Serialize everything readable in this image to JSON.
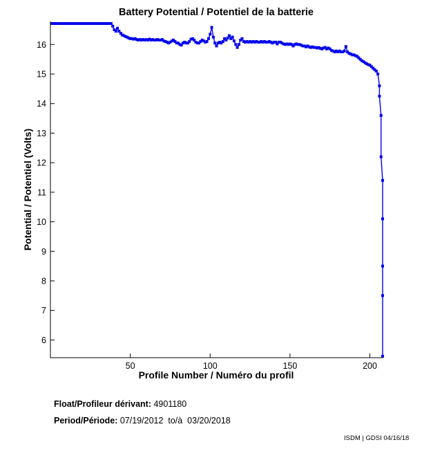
{
  "header": {
    "title": "Battery Potential / Potentiel de la batterie"
  },
  "chart_data": {
    "type": "line",
    "title": "Battery Potential / Potentiel de la batterie",
    "xlabel": "Profile Number / Numéro du profil",
    "ylabel": "Potential / Potentiel (Volts)",
    "xlim": [
      0,
      208
    ],
    "ylim": [
      5.4,
      16.78
    ],
    "xticks": [
      50,
      100,
      150,
      200
    ],
    "yticks": [
      6,
      7,
      8,
      9,
      10,
      11,
      12,
      13,
      14,
      15,
      16
    ],
    "grid": false,
    "legend": null,
    "line_color": "#0000EE",
    "marker": "square",
    "series": [
      {
        "name": "battery-potential-volts",
        "points": [
          [
            1,
            16.71
          ],
          [
            2,
            16.71
          ],
          [
            3,
            16.71
          ],
          [
            4,
            16.71
          ],
          [
            5,
            16.71
          ],
          [
            6,
            16.71
          ],
          [
            7,
            16.71
          ],
          [
            8,
            16.71
          ],
          [
            9,
            16.71
          ],
          [
            10,
            16.71
          ],
          [
            11,
            16.71
          ],
          [
            12,
            16.71
          ],
          [
            13,
            16.71
          ],
          [
            14,
            16.71
          ],
          [
            15,
            16.71
          ],
          [
            16,
            16.71
          ],
          [
            17,
            16.71
          ],
          [
            18,
            16.71
          ],
          [
            19,
            16.71
          ],
          [
            20,
            16.71
          ],
          [
            21,
            16.71
          ],
          [
            22,
            16.71
          ],
          [
            23,
            16.71
          ],
          [
            24,
            16.71
          ],
          [
            25,
            16.71
          ],
          [
            26,
            16.71
          ],
          [
            27,
            16.71
          ],
          [
            28,
            16.71
          ],
          [
            29,
            16.71
          ],
          [
            30,
            16.71
          ],
          [
            31,
            16.71
          ],
          [
            32,
            16.71
          ],
          [
            33,
            16.71
          ],
          [
            34,
            16.71
          ],
          [
            35,
            16.71
          ],
          [
            36,
            16.71
          ],
          [
            37,
            16.71
          ],
          [
            38,
            16.71
          ],
          [
            39,
            16.62
          ],
          [
            40,
            16.5
          ],
          [
            41,
            16.45
          ],
          [
            42,
            16.55
          ],
          [
            43,
            16.45
          ],
          [
            44,
            16.38
          ],
          [
            45,
            16.32
          ],
          [
            46,
            16.3
          ],
          [
            47,
            16.27
          ],
          [
            48,
            16.25
          ],
          [
            49,
            16.22
          ],
          [
            50,
            16.2
          ],
          [
            51,
            16.2
          ],
          [
            52,
            16.18
          ],
          [
            53,
            16.2
          ],
          [
            54,
            16.17
          ],
          [
            55,
            16.15
          ],
          [
            56,
            16.17
          ],
          [
            57,
            16.15
          ],
          [
            58,
            16.17
          ],
          [
            59,
            16.15
          ],
          [
            60,
            16.17
          ],
          [
            61,
            16.15
          ],
          [
            62,
            16.18
          ],
          [
            63,
            16.15
          ],
          [
            64,
            16.17
          ],
          [
            65,
            16.15
          ],
          [
            66,
            16.15
          ],
          [
            67,
            16.17
          ],
          [
            68,
            16.15
          ],
          [
            69,
            16.15
          ],
          [
            70,
            16.17
          ],
          [
            71,
            16.12
          ],
          [
            72,
            16.1
          ],
          [
            73,
            16.08
          ],
          [
            74,
            16.05
          ],
          [
            75,
            16.08
          ],
          [
            76,
            16.12
          ],
          [
            77,
            16.15
          ],
          [
            78,
            16.1
          ],
          [
            79,
            16.05
          ],
          [
            80,
            16.05
          ],
          [
            81,
            16.0
          ],
          [
            82,
            15.98
          ],
          [
            83,
            16.05
          ],
          [
            84,
            16.08
          ],
          [
            85,
            16.05
          ],
          [
            86,
            16.05
          ],
          [
            87,
            16.1
          ],
          [
            88,
            16.18
          ],
          [
            89,
            16.2
          ],
          [
            90,
            16.15
          ],
          [
            91,
            16.08
          ],
          [
            92,
            16.05
          ],
          [
            93,
            16.05
          ],
          [
            94,
            16.1
          ],
          [
            95,
            16.15
          ],
          [
            96,
            16.12
          ],
          [
            97,
            16.08
          ],
          [
            98,
            16.1
          ],
          [
            99,
            16.2
          ],
          [
            100,
            16.35
          ],
          [
            101,
            16.58
          ],
          [
            102,
            16.25
          ],
          [
            103,
            16.05
          ],
          [
            104,
            15.95
          ],
          [
            105,
            16.05
          ],
          [
            106,
            16.08
          ],
          [
            107,
            16.05
          ],
          [
            108,
            16.1
          ],
          [
            109,
            16.2
          ],
          [
            110,
            16.15
          ],
          [
            111,
            16.22
          ],
          [
            112,
            16.3
          ],
          [
            113,
            16.2
          ],
          [
            114,
            16.25
          ],
          [
            115,
            16.12
          ],
          [
            116,
            16.0
          ],
          [
            117,
            15.9
          ],
          [
            118,
            16.0
          ],
          [
            119,
            16.15
          ],
          [
            120,
            16.2
          ],
          [
            121,
            16.1
          ],
          [
            122,
            16.08
          ],
          [
            123,
            16.1
          ],
          [
            124,
            16.08
          ],
          [
            125,
            16.1
          ],
          [
            126,
            16.08
          ],
          [
            127,
            16.1
          ],
          [
            128,
            16.08
          ],
          [
            129,
            16.1
          ],
          [
            130,
            16.08
          ],
          [
            131,
            16.08
          ],
          [
            132,
            16.1
          ],
          [
            133,
            16.08
          ],
          [
            134,
            16.1
          ],
          [
            135,
            16.08
          ],
          [
            136,
            16.08
          ],
          [
            137,
            16.1
          ],
          [
            138,
            16.08
          ],
          [
            139,
            16.05
          ],
          [
            140,
            16.08
          ],
          [
            141,
            16.08
          ],
          [
            142,
            16.02
          ],
          [
            143,
            16.08
          ],
          [
            144,
            16.08
          ],
          [
            145,
            16.05
          ],
          [
            146,
            16.02
          ],
          [
            147,
            16.0
          ],
          [
            148,
            16.02
          ],
          [
            149,
            16.0
          ],
          [
            150,
            16.02
          ],
          [
            151,
            16.0
          ],
          [
            152,
            15.95
          ],
          [
            153,
            16.0
          ],
          [
            154,
            16.02
          ],
          [
            155,
            16.0
          ],
          [
            156,
            16.0
          ],
          [
            157,
            15.98
          ],
          [
            158,
            15.95
          ],
          [
            159,
            15.95
          ],
          [
            160,
            15.92
          ],
          [
            161,
            15.95
          ],
          [
            162,
            15.92
          ],
          [
            163,
            15.9
          ],
          [
            164,
            15.92
          ],
          [
            165,
            15.9
          ],
          [
            166,
            15.9
          ],
          [
            167,
            15.88
          ],
          [
            168,
            15.9
          ],
          [
            169,
            15.87
          ],
          [
            170,
            15.85
          ],
          [
            171,
            15.88
          ],
          [
            172,
            15.9
          ],
          [
            173,
            15.85
          ],
          [
            174,
            15.88
          ],
          [
            175,
            15.85
          ],
          [
            176,
            15.8
          ],
          [
            177,
            15.78
          ],
          [
            178,
            15.75
          ],
          [
            179,
            15.78
          ],
          [
            180,
            15.75
          ],
          [
            181,
            15.78
          ],
          [
            182,
            15.75
          ],
          [
            183,
            15.75
          ],
          [
            184,
            15.78
          ],
          [
            185,
            15.93
          ],
          [
            186,
            15.75
          ],
          [
            187,
            15.7
          ],
          [
            188,
            15.68
          ],
          [
            189,
            15.65
          ],
          [
            190,
            15.65
          ],
          [
            191,
            15.62
          ],
          [
            192,
            15.6
          ],
          [
            193,
            15.55
          ],
          [
            194,
            15.5
          ],
          [
            195,
            15.45
          ],
          [
            196,
            15.42
          ],
          [
            197,
            15.38
          ],
          [
            198,
            15.35
          ],
          [
            199,
            15.32
          ],
          [
            200,
            15.3
          ],
          [
            201,
            15.25
          ],
          [
            202,
            15.2
          ],
          [
            203,
            15.15
          ],
          [
            204,
            15.1
          ],
          [
            205,
            15.0
          ],
          [
            206,
            14.6
          ],
          [
            206,
            14.25
          ],
          [
            207,
            13.6
          ],
          [
            207,
            12.2
          ],
          [
            208,
            11.4
          ],
          [
            208,
            10.1
          ],
          [
            208,
            8.5
          ],
          [
            208,
            7.5
          ],
          [
            208,
            5.45
          ]
        ]
      }
    ]
  },
  "footer": {
    "float_label": "Float/Profileur dérivant:",
    "float_value": "4901180",
    "period_label": "Period/Période:",
    "period_value": "07/19/2012  to/à  03/20/2018",
    "credit": "ISDM | GDSI 04/16/18"
  }
}
